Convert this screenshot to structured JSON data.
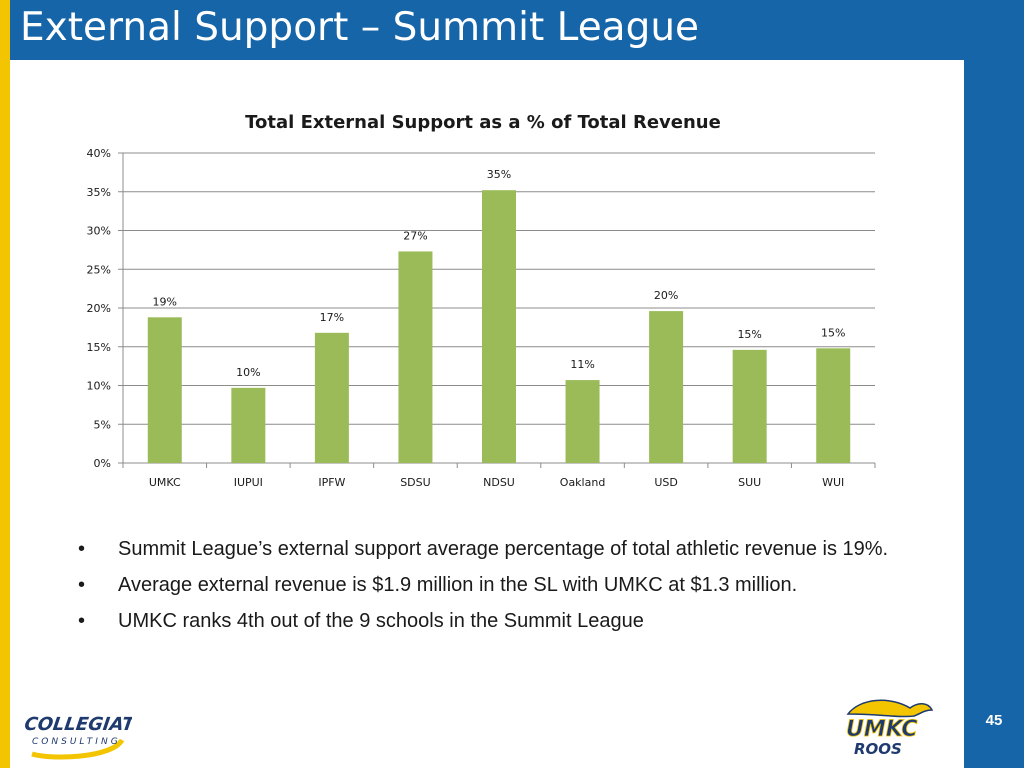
{
  "slide": {
    "title": "External Support – Summit League",
    "page_number": "45"
  },
  "chart_data": {
    "type": "bar",
    "title": "Total External Support as a % of Total Revenue",
    "categories": [
      "UMKC",
      "IUPUI",
      "IPFW",
      "SDSU",
      "NDSU",
      "Oakland",
      "USD",
      "SUU",
      "WUI"
    ],
    "values": [
      18.8,
      9.7,
      16.8,
      27.3,
      35.2,
      10.7,
      19.6,
      14.6,
      14.8
    ],
    "data_labels": [
      "19%",
      "10%",
      "17%",
      "27%",
      "35%",
      "11%",
      "20%",
      "15%",
      "15%"
    ],
    "y_ticks": [
      0,
      5,
      10,
      15,
      20,
      25,
      30,
      35,
      40
    ],
    "y_tick_labels": [
      "0%",
      "5%",
      "10%",
      "15%",
      "20%",
      "25%",
      "30%",
      "35%",
      "40%"
    ],
    "ylim": [
      0,
      40
    ],
    "xlabel": "",
    "ylabel": "",
    "grid": true,
    "legend": "none",
    "bar_color": "#9bbb59"
  },
  "bullets": [
    "Summit League’s external support average percentage of total athletic revenue is 19%.",
    "Average external revenue is $1.9 million in the SL with UMKC at $1.3 million.",
    "UMKC ranks 4th out of the 9 schools in the Summit League"
  ],
  "bullet_symbol": "•",
  "logos": {
    "collegiate_top": "COLLEGIATE",
    "collegiate_bottom": "CONSULTING",
    "umkc_top": "UMKC",
    "umkc_bottom": "ROOS"
  }
}
